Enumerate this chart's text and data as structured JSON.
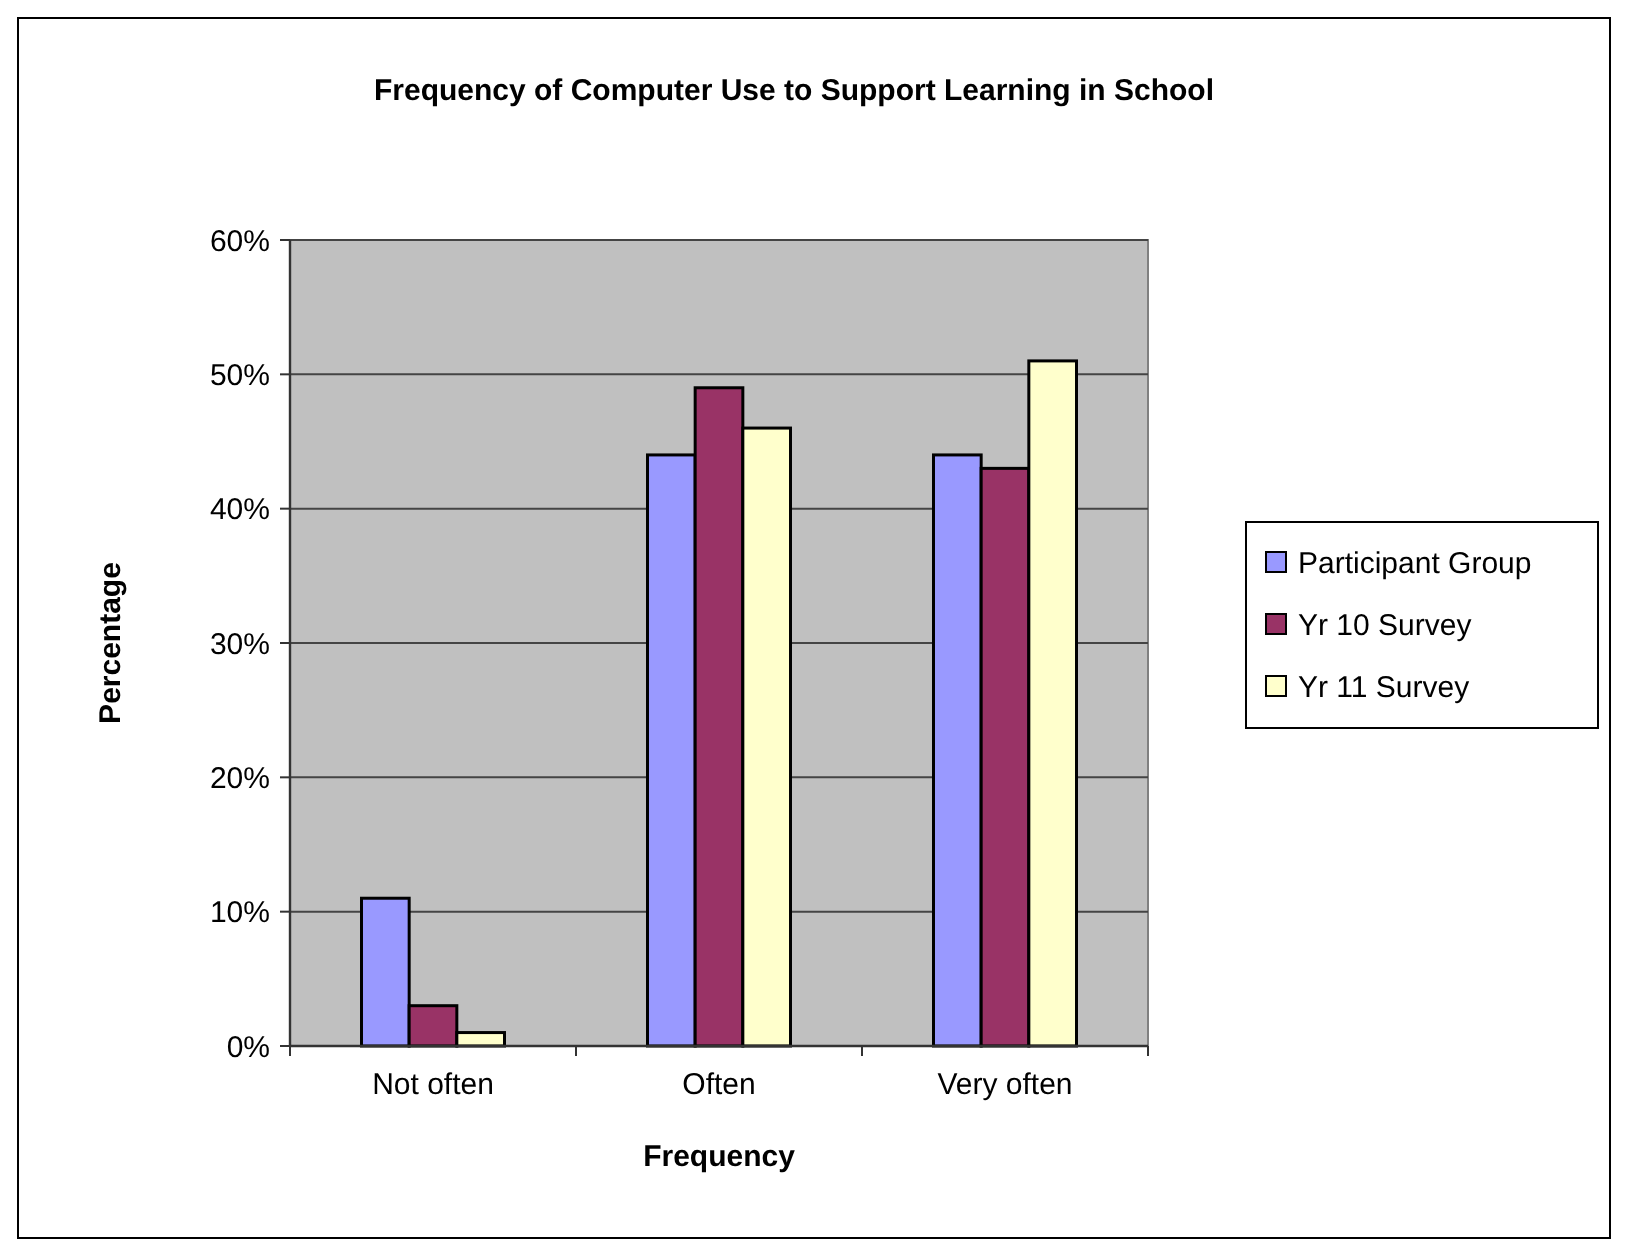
{
  "chart_data": {
    "type": "bar",
    "title": "Frequency of Computer Use to Support Learning in School",
    "xlabel": "Frequency",
    "ylabel": "Percentage",
    "categories": [
      "Not often",
      "Often",
      "Very often"
    ],
    "series": [
      {
        "name": "Participant Group",
        "color": "#9999ff",
        "values": [
          11,
          44,
          44
        ]
      },
      {
        "name": "Yr 10 Survey",
        "color": "#993366",
        "values": [
          3,
          49,
          43
        ]
      },
      {
        "name": "Yr 11 Survey",
        "color": "#ffffcc",
        "values": [
          1,
          46,
          51
        ]
      }
    ],
    "ylim": [
      0,
      60
    ],
    "yticks": [
      {
        "value": 0,
        "label": "0%"
      },
      {
        "value": 10,
        "label": "10%"
      },
      {
        "value": 20,
        "label": "20%"
      },
      {
        "value": 30,
        "label": "30%"
      },
      {
        "value": 40,
        "label": "40%"
      },
      {
        "value": 50,
        "label": "50%"
      },
      {
        "value": 60,
        "label": "60%"
      }
    ],
    "grid": "y",
    "legend": "right"
  }
}
